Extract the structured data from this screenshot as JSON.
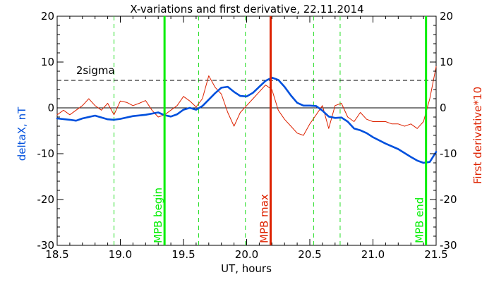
{
  "chart_data": {
    "type": "line",
    "title": "X-variations and first derivative, 22.11.2014",
    "xlabel": "UT, hours",
    "ylabel_left": "deltaX, nT",
    "ylabel_right": "First derivative*10",
    "xlim": [
      18.5,
      21.5
    ],
    "ylim": [
      -30,
      20
    ],
    "x_ticks": [
      18.5,
      19.0,
      19.5,
      20.0,
      20.5,
      21.0,
      21.5
    ],
    "x_tick_labels": [
      "18.5",
      "19.0",
      "19.5",
      "20.0",
      "20.5",
      "21.0",
      "21.5"
    ],
    "y_ticks": [
      20,
      10,
      0,
      -10,
      -20,
      -30
    ],
    "y_tick_labels": [
      "20",
      "10",
      "0",
      "-10",
      "-20",
      "-30"
    ],
    "grid": false,
    "threshold": {
      "label": "2sigma",
      "value": 6
    },
    "zero_line": 0,
    "events": [
      {
        "label": "MPB begin",
        "x": 19.35,
        "color": "#00ee00"
      },
      {
        "label": "MPB max",
        "x": 20.19,
        "color": "#dd2200"
      },
      {
        "label": "MPB end",
        "x": 21.42,
        "color": "#00ee00"
      }
    ],
    "dashed_markers_x": [
      18.95,
      19.62,
      19.99,
      20.53,
      20.74
    ],
    "series": [
      {
        "name": "deltaX",
        "axis": "left",
        "color": "#0050dd",
        "x": [
          18.5,
          18.6,
          18.65,
          18.7,
          18.8,
          18.9,
          18.95,
          19.0,
          19.1,
          19.2,
          19.3,
          19.35,
          19.4,
          19.45,
          19.5,
          19.55,
          19.6,
          19.65,
          19.7,
          19.75,
          19.8,
          19.85,
          19.9,
          19.95,
          20.0,
          20.05,
          20.1,
          20.15,
          20.2,
          20.25,
          20.3,
          20.35,
          20.4,
          20.45,
          20.5,
          20.55,
          20.6,
          20.65,
          20.7,
          20.75,
          20.8,
          20.85,
          20.9,
          20.95,
          21.0,
          21.1,
          21.2,
          21.3,
          21.35,
          21.4,
          21.45,
          21.5
        ],
        "y": [
          -2.3,
          -2.6,
          -2.8,
          -2.3,
          -1.7,
          -2.5,
          -2.6,
          -2.4,
          -1.8,
          -1.5,
          -1.0,
          -1.6,
          -1.9,
          -1.4,
          -0.4,
          0.0,
          -0.4,
          0.4,
          1.8,
          3.2,
          4.4,
          4.6,
          3.5,
          2.6,
          2.5,
          3.3,
          4.6,
          5.9,
          6.6,
          6.1,
          4.6,
          2.7,
          1.1,
          0.5,
          0.5,
          0.4,
          -0.6,
          -1.9,
          -2.2,
          -2.1,
          -3.0,
          -4.5,
          -4.9,
          -5.5,
          -6.4,
          -7.8,
          -9.0,
          -10.7,
          -11.5,
          -12.0,
          -11.8,
          -9.6
        ]
      },
      {
        "name": "First derivative*10",
        "axis": "right",
        "color": "#dd2200",
        "x": [
          18.5,
          18.55,
          18.6,
          18.65,
          18.7,
          18.75,
          18.8,
          18.85,
          18.9,
          18.95,
          19.0,
          19.05,
          19.1,
          19.15,
          19.2,
          19.25,
          19.3,
          19.35,
          19.4,
          19.45,
          19.5,
          19.55,
          19.6,
          19.65,
          19.7,
          19.75,
          19.8,
          19.85,
          19.9,
          19.95,
          20.0,
          20.05,
          20.1,
          20.15,
          20.2,
          20.25,
          20.3,
          20.35,
          20.4,
          20.45,
          20.5,
          20.55,
          20.6,
          20.65,
          20.7,
          20.75,
          20.8,
          20.85,
          20.9,
          20.95,
          21.0,
          21.05,
          21.1,
          21.15,
          21.2,
          21.25,
          21.3,
          21.35,
          21.4,
          21.45,
          21.5
        ],
        "y": [
          -1.5,
          -0.5,
          -1.5,
          -0.5,
          0.5,
          2.0,
          0.5,
          -0.5,
          1.0,
          -1.5,
          1.5,
          1.2,
          0.5,
          1.0,
          1.6,
          -0.5,
          -2.0,
          -1.5,
          -0.5,
          0.5,
          2.5,
          1.5,
          0.2,
          2.0,
          7.0,
          4.5,
          3.0,
          -1.0,
          -4.0,
          -1.0,
          0.5,
          2.0,
          3.5,
          5.0,
          4.0,
          -0.5,
          -2.5,
          -4.0,
          -5.5,
          -6.0,
          -3.5,
          -1.5,
          0.5,
          -4.5,
          0.5,
          1.0,
          -2.0,
          -3.0,
          -1.0,
          -2.5,
          -3.0,
          -3.0,
          -3.0,
          -3.5,
          -3.5,
          -4.0,
          -3.5,
          -4.5,
          -3.0,
          2.0,
          9.0
        ]
      }
    ]
  }
}
